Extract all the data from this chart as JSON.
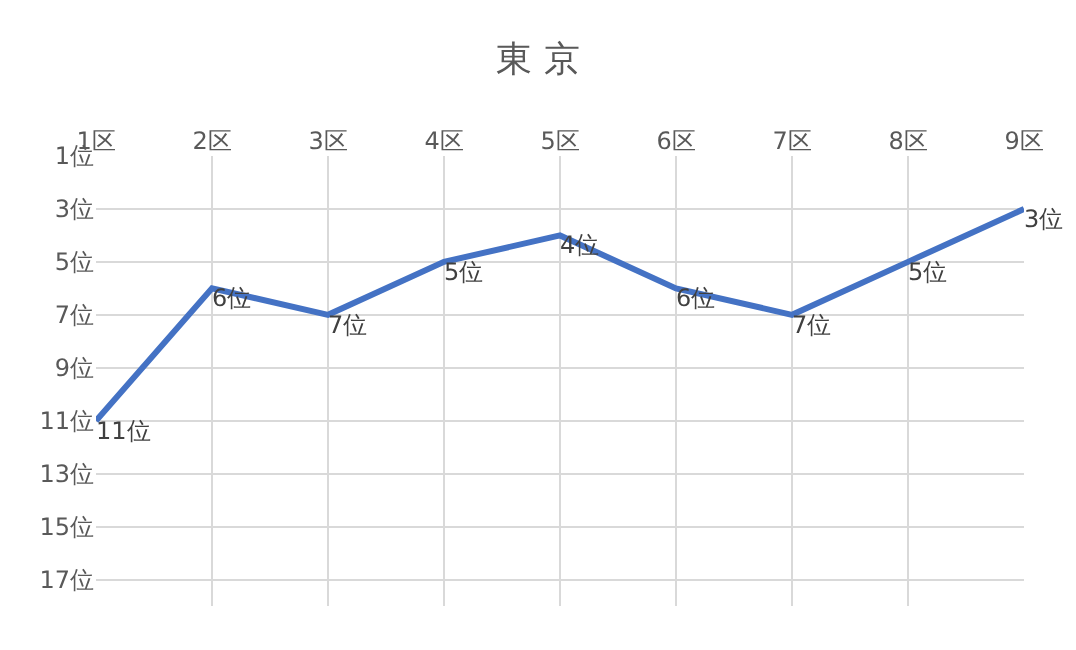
{
  "chart_data": {
    "type": "line",
    "title": "東 京",
    "categories": [
      "1区",
      "2区",
      "3区",
      "4区",
      "5区",
      "6区",
      "7区",
      "8区",
      "9区"
    ],
    "series": [
      {
        "color": "#4472c4",
        "values": [
          11,
          6,
          7,
          5,
          4,
          6,
          7,
          5,
          3
        ],
        "value_labels": [
          "11位",
          "6位",
          "7位",
          "5位",
          "4位",
          "6位",
          "7位",
          "5位",
          "3位"
        ]
      }
    ],
    "ylim": [
      18,
      1
    ],
    "yticks": [
      {
        "value": 1,
        "label": "1位"
      },
      {
        "value": 3,
        "label": "3位"
      },
      {
        "value": 5,
        "label": "5位"
      },
      {
        "value": 7,
        "label": "7位"
      },
      {
        "value": 9,
        "label": "9位"
      },
      {
        "value": 11,
        "label": "11位"
      },
      {
        "value": 13,
        "label": "13位"
      },
      {
        "value": 15,
        "label": "15位"
      },
      {
        "value": 17,
        "label": "17位"
      }
    ],
    "grid": true,
    "marker": "none",
    "line_style": "solid",
    "legend": false
  }
}
